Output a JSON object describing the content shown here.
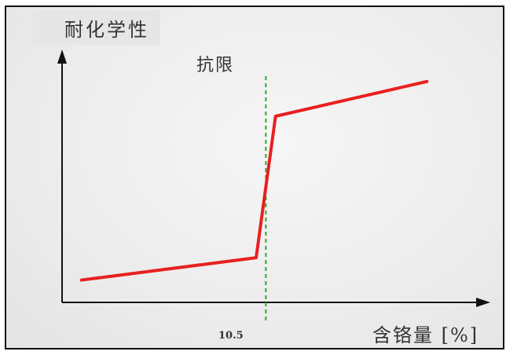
{
  "chart_data": {
    "type": "line",
    "ylabel": "耐化学性",
    "xlabel": "含铬量 [%]",
    "annotation": "抗限",
    "xticks": [
      "10.5"
    ],
    "threshold_x": 10.5,
    "xlim": [
      0,
      20
    ],
    "ylim": [
      0,
      10
    ],
    "series": [
      {
        "color": "#e8201f",
        "points": [
          {
            "x": 1.0,
            "y": 0.9
          },
          {
            "x": 10.0,
            "y": 1.8
          },
          {
            "x": 11.0,
            "y": 7.5
          },
          {
            "x": 18.8,
            "y": 8.9
          }
        ]
      }
    ],
    "colors": {
      "line": "#e8201f",
      "threshold": "#2ea82e",
      "axis": "#111111"
    }
  }
}
